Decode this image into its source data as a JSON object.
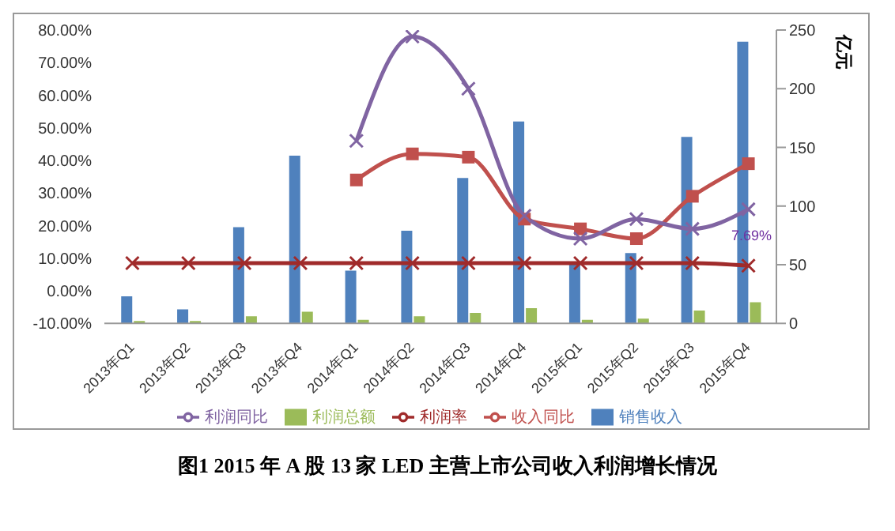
{
  "chart_data": {
    "type": "bar",
    "categories": [
      "2013年Q1",
      "2013年Q2",
      "2013年Q3",
      "2013年Q4",
      "2014年Q1",
      "2014年Q2",
      "2014年Q3",
      "2014年Q4",
      "2015年Q1",
      "2015年Q2",
      "2015年Q3",
      "2015年Q4"
    ],
    "series": [
      {
        "name": "销售收入",
        "axis": "y2",
        "color": "#4f81bd",
        "values": [
          23,
          12,
          82,
          143,
          45,
          79,
          124,
          172,
          50,
          60,
          159,
          240
        ]
      },
      {
        "name": "利润总额",
        "axis": "y2",
        "color": "#9bbb59",
        "values": [
          2,
          2,
          6,
          10,
          3,
          6,
          9,
          13,
          3,
          4,
          11,
          18
        ]
      },
      {
        "name": "收入同比",
        "type": "line",
        "axis": "y",
        "color": "#c0504d",
        "marker": "square",
        "values": [
          null,
          null,
          null,
          null,
          34,
          42,
          41,
          22,
          19,
          16,
          29,
          39
        ]
      },
      {
        "name": "利润同比",
        "type": "line",
        "axis": "y",
        "color": "#8064a2",
        "marker": "cross",
        "values": [
          null,
          null,
          null,
          null,
          46,
          78,
          62,
          23,
          16,
          22,
          19,
          25
        ]
      },
      {
        "name": "利润率",
        "type": "line",
        "axis": "y",
        "color": "#a02b2b",
        "marker": "cross",
        "values": [
          8.5,
          8.5,
          8.5,
          8.5,
          8.5,
          8.5,
          8.5,
          8.5,
          8.5,
          8.5,
          8.5,
          7.69
        ],
        "value_labels": [
          null,
          null,
          null,
          null,
          null,
          null,
          null,
          null,
          null,
          null,
          null,
          "7.69%"
        ]
      }
    ],
    "ylim": [
      -10,
      80
    ],
    "yticks": [
      {
        "value": -10,
        "label": "-10.00%"
      },
      {
        "value": 0,
        "label": "0.00%"
      },
      {
        "value": 10,
        "label": "10.00%"
      },
      {
        "value": 20,
        "label": "20.00%"
      },
      {
        "value": 30,
        "label": "30.00%"
      },
      {
        "value": 40,
        "label": "40.00%"
      },
      {
        "value": 50,
        "label": "50.00%"
      },
      {
        "value": 60,
        "label": "60.00%"
      },
      {
        "value": 70,
        "label": "70.00%"
      },
      {
        "value": 80,
        "label": "80.00%"
      }
    ],
    "y2lim": [
      0,
      250
    ],
    "y2ticks": [
      0,
      50,
      100,
      150,
      200,
      250
    ],
    "y2label": "亿元",
    "legend": "bottom",
    "grid": false,
    "line_style": "solid",
    "annotations": [
      "图1   2015 年 A 股 13 家 LED 主营上市公司收入利润增长情况"
    ]
  }
}
